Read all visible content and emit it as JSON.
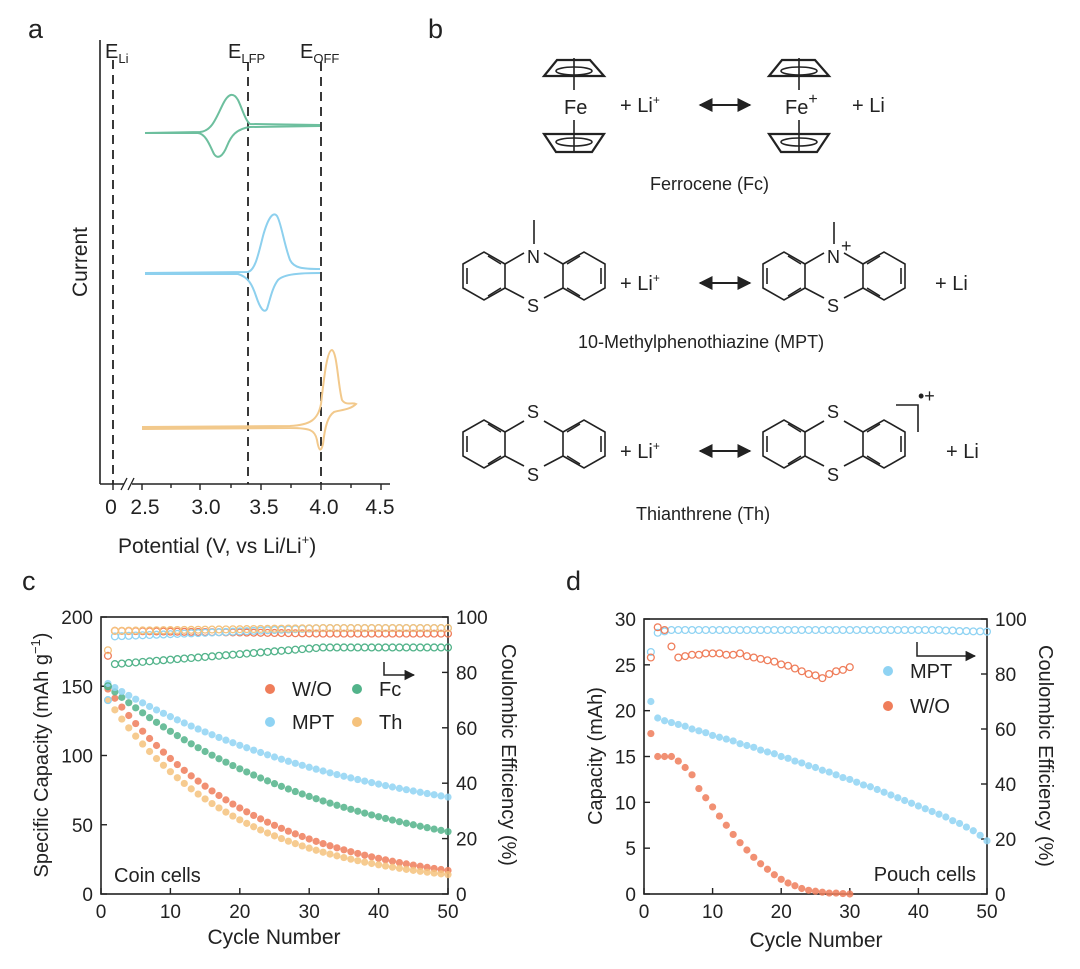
{
  "panel_a": {
    "label": "a",
    "ref_lines": [
      {
        "main": "E",
        "sub": "Li"
      },
      {
        "main": "E",
        "sub": "LFP"
      },
      {
        "main": "E",
        "sub": "OFF"
      }
    ],
    "ylabel": "Current",
    "xlabel_main": "Potential (V, vs Li/Li",
    "xlabel_sup": "+",
    "xlabel_end": ")",
    "xticks": [
      "0",
      "2.5",
      "3.0",
      "3.5",
      "4.0",
      "4.5"
    ],
    "colors": {
      "fc": "#6dbf9e",
      "mpt": "#8dd0ee",
      "th": "#f2c98c"
    }
  },
  "panel_b": {
    "label": "b",
    "fc": {
      "fe1": "Fe",
      "fe2": "Fe",
      "fe_charge": "+",
      "plus_li": "+ Li",
      "li_sup": "+",
      "li": "+ Li",
      "name": "Ferrocene (Fc)"
    },
    "mpt": {
      "n1": "N",
      "s1": "S",
      "n2": "N",
      "n_charge": "+",
      "s2": "S",
      "plus_li": "+ Li",
      "li_sup": "+",
      "li": "+ Li",
      "name": "10-Methylphenothiazine (MPT)"
    },
    "th": {
      "s1a": "S",
      "s1b": "S",
      "s2a": "S",
      "s2b": "S",
      "radical": "•+",
      "plus_li": "+ Li",
      "li_sup": "+",
      "li": "+ Li",
      "name": "Thianthrene (Th)"
    }
  },
  "chart_data": [
    {
      "panel": "c",
      "type": "scatter",
      "annotation": "Coin cells",
      "xlabel": "Cycle Number",
      "ylabel_main": "Specific Capacity (mAh g",
      "ylabel_sup": "−1",
      "ylabel_end": ")",
      "y2label": "Coulombic Efficiency (%)",
      "xlim": [
        0,
        50
      ],
      "ylim": [
        0,
        200
      ],
      "y2lim": [
        0,
        100
      ],
      "xticks": [
        "0",
        "10",
        "20",
        "30",
        "40",
        "50"
      ],
      "yticks": [
        "0",
        "50",
        "100",
        "150",
        "200"
      ],
      "y2ticks": [
        "0",
        "20",
        "40",
        "60",
        "80",
        "100"
      ],
      "legend": [
        {
          "name": "W/O",
          "color": "#ef7d5a"
        },
        {
          "name": "Fc",
          "color": "#52b38a"
        },
        {
          "name": "MPT",
          "color": "#8fd3f3"
        },
        {
          "name": "Th",
          "color": "#f5c27c"
        }
      ],
      "capacity_series": [
        {
          "name": "W/O",
          "color": "#ef7d5a",
          "start": 148,
          "end": 17,
          "k": 2.3
        },
        {
          "name": "Fc",
          "color": "#52b38a",
          "start": 150,
          "end": 45,
          "k": 1.5
        },
        {
          "name": "MPT",
          "color": "#8fd3f3",
          "start": 152,
          "end": 70,
          "k": 1.3
        },
        {
          "name": "Th",
          "color": "#f5c27c",
          "start": 140,
          "end": 14,
          "k": 2.6
        }
      ],
      "efficiency_series": [
        {
          "name": "W/O",
          "color": "#ef7d5a",
          "first": 86,
          "value": 95,
          "end": 94
        },
        {
          "name": "Fc",
          "color": "#52b38a",
          "first": 75,
          "value": 83,
          "end": 89
        },
        {
          "name": "MPT",
          "color": "#8fd3f3",
          "first": 70,
          "value": 93,
          "end": 96
        },
        {
          "name": "Th",
          "color": "#f5c27c",
          "first": 88,
          "value": 95,
          "end": 96
        }
      ]
    },
    {
      "panel": "d",
      "type": "scatter",
      "annotation": "Pouch cells",
      "xlabel": "Cycle Number",
      "ylabel": "Capacity (mAh)",
      "y2label": "Coulombic Efficiency (%)",
      "xlim": [
        0,
        50
      ],
      "ylim": [
        0,
        30
      ],
      "y2lim": [
        0,
        100
      ],
      "xticks": [
        "0",
        "10",
        "20",
        "30",
        "40",
        "50"
      ],
      "yticks": [
        "0",
        "5",
        "10",
        "15",
        "20",
        "25",
        "30"
      ],
      "y2ticks": [
        "0",
        "20",
        "40",
        "60",
        "80",
        "100"
      ],
      "legend": [
        {
          "name": "MPT",
          "color": "#8fd3f3"
        },
        {
          "name": "W/O",
          "color": "#ef7d5a"
        }
      ],
      "capacity_series": [
        {
          "name": "MPT",
          "color": "#8fd3f3",
          "values": [
            21,
            19.2,
            18.9,
            18.7,
            18.5,
            18.3,
            18.0,
            17.8,
            17.6,
            17.3,
            17.1,
            16.9,
            16.7,
            16.4,
            16.2,
            16.0,
            15.7,
            15.5,
            15.3,
            15.0,
            14.8,
            14.5,
            14.3,
            14.0,
            13.8,
            13.5,
            13.3,
            13.0,
            12.7,
            12.5,
            12.2,
            11.9,
            11.7,
            11.4,
            11.1,
            10.8,
            10.5,
            10.2,
            9.9,
            9.6,
            9.3,
            9.0,
            8.7,
            8.4,
            8.0,
            7.7,
            7.3,
            6.9,
            6.4,
            5.8
          ]
        },
        {
          "name": "W/O",
          "color": "#ef7d5a",
          "values": [
            17.5,
            15,
            15,
            15,
            14.5,
            13.8,
            13,
            11.5,
            10.5,
            9.5,
            8.5,
            7.5,
            6.5,
            5.6,
            4.8,
            4.0,
            3.3,
            2.7,
            2.1,
            1.6,
            1.2,
            0.9,
            0.6,
            0.4,
            0.3,
            0.2,
            0.1,
            0.1,
            0.05,
            0.0
          ]
        }
      ],
      "efficiency_series": [
        {
          "name": "MPT",
          "color": "#8fd3f3",
          "values": [
            88,
            95,
            95.5,
            96,
            96,
            96,
            96,
            96,
            96,
            96,
            96,
            96,
            96,
            96,
            96,
            96,
            96,
            96,
            96,
            96,
            96,
            96,
            96,
            96,
            96,
            96,
            96,
            96,
            96,
            96,
            96,
            96,
            96,
            96,
            96,
            96,
            96,
            96,
            96,
            96,
            96,
            96,
            96,
            95.8,
            95.8,
            95.6,
            95.6,
            95.5,
            95.5,
            95.4
          ]
        },
        {
          "name": "W/O",
          "color": "#ef7d5a",
          "values": [
            86,
            97,
            96,
            90,
            86,
            86.5,
            87,
            87,
            87.5,
            87.5,
            87.5,
            87,
            87,
            87.5,
            86.5,
            86,
            85.5,
            85,
            84.5,
            83.5,
            83,
            82,
            81,
            80,
            79.5,
            78.5,
            80,
            81,
            81.5,
            82.5
          ]
        }
      ]
    }
  ]
}
